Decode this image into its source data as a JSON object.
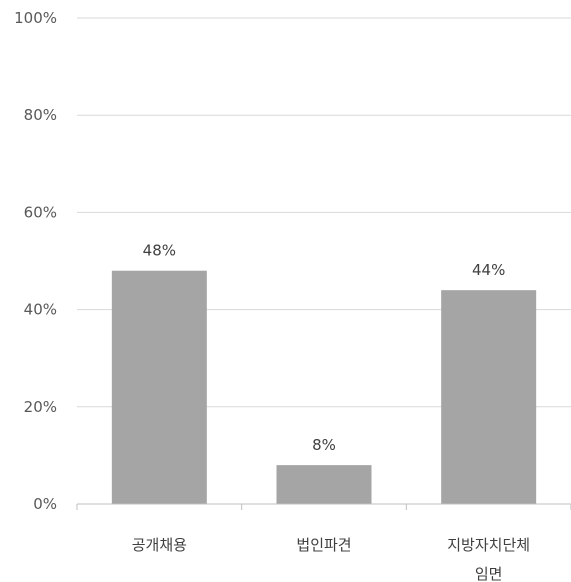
{
  "chart_data": {
    "type": "bar",
    "title": "",
    "xlabel": "",
    "ylabel": "",
    "categories": [
      [
        "공개채용"
      ],
      [
        "법인파견"
      ],
      [
        "지방자치단체",
        "임면"
      ]
    ],
    "values": [
      48,
      8,
      44
    ],
    "data_labels": [
      "48%",
      "8%",
      "44%"
    ],
    "y_ticks": [
      0,
      20,
      40,
      60,
      80,
      100
    ],
    "y_tick_labels": [
      "0%",
      "20%",
      "40%",
      "60%",
      "80%",
      "100%"
    ],
    "ylim": [
      0,
      100
    ],
    "grid": true,
    "legend": "none",
    "colors": {
      "bar": "#a5a5a5",
      "grid": "#d9d9d9",
      "axis": "#bfbfbf"
    }
  }
}
